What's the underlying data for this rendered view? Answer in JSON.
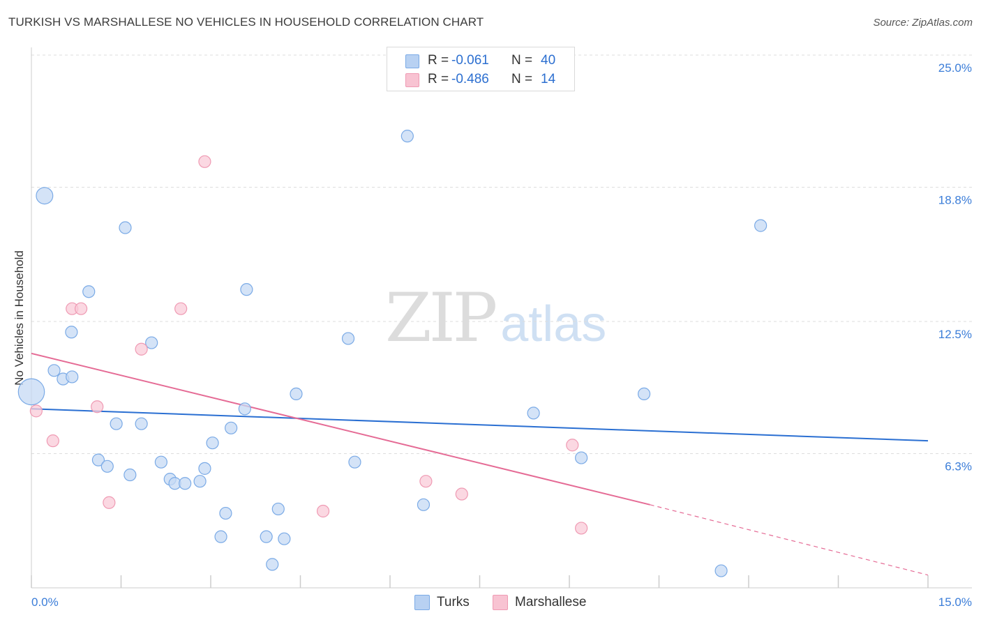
{
  "title": "TURKISH VS MARSHALLESE NO VEHICLES IN HOUSEHOLD CORRELATION CHART",
  "source": "Source: ZipAtlas.com",
  "watermark": {
    "zip": "ZIP",
    "atlas": "atlas"
  },
  "legend": {
    "rows": [
      {
        "r_label": "R =",
        "r_value": "-0.061",
        "n_label": "N =",
        "n_value": "40",
        "color": "#b8d1f2"
      },
      {
        "r_label": "R =",
        "r_value": "-0.486",
        "n_label": "N =",
        "n_value": "14",
        "color": "#f8c3d2"
      }
    ]
  },
  "bottom_legend": {
    "turks": "Turks",
    "marshallese": "Marshallese"
  },
  "chart_data": {
    "type": "scatter",
    "title": "TURKISH VS MARSHALLESE NO VEHICLES IN HOUSEHOLD CORRELATION CHART",
    "ylabel": "No Vehicles in Household",
    "xlim": [
      0,
      15
    ],
    "ylim": [
      0,
      25
    ],
    "x_tick_labels": [
      "0.0%",
      "15.0%"
    ],
    "y_ticks": [
      6.3,
      12.5,
      18.8,
      25.0
    ],
    "y_tick_labels": [
      "6.3%",
      "12.5%",
      "18.8%",
      "25.0%"
    ],
    "grid": true,
    "legend_position": "top-center",
    "series": [
      {
        "name": "Turks",
        "color": "#7aaae6",
        "fill": "#c5daf4",
        "trend": {
          "x": [
            0,
            15
          ],
          "y": [
            8.4,
            6.9
          ]
        },
        "points": [
          {
            "x": 0.22,
            "y": 18.4,
            "s": 1.4
          },
          {
            "x": 0.0,
            "y": 9.2,
            "s": 2.2
          },
          {
            "x": 0.38,
            "y": 10.2,
            "s": 1
          },
          {
            "x": 0.53,
            "y": 9.8,
            "s": 1
          },
          {
            "x": 0.68,
            "y": 9.9,
            "s": 1
          },
          {
            "x": 0.67,
            "y": 12.0,
            "s": 1
          },
          {
            "x": 0.96,
            "y": 13.9,
            "s": 1
          },
          {
            "x": 1.57,
            "y": 16.9,
            "s": 1
          },
          {
            "x": 1.42,
            "y": 7.7,
            "s": 1
          },
          {
            "x": 1.84,
            "y": 7.7,
            "s": 1
          },
          {
            "x": 1.12,
            "y": 6.0,
            "s": 1
          },
          {
            "x": 1.27,
            "y": 5.7,
            "s": 1
          },
          {
            "x": 1.65,
            "y": 5.3,
            "s": 1
          },
          {
            "x": 2.01,
            "y": 11.5,
            "s": 1
          },
          {
            "x": 2.17,
            "y": 5.9,
            "s": 1
          },
          {
            "x": 2.32,
            "y": 5.1,
            "s": 1
          },
          {
            "x": 2.4,
            "y": 4.9,
            "s": 1
          },
          {
            "x": 2.57,
            "y": 4.9,
            "s": 1
          },
          {
            "x": 2.82,
            "y": 5.0,
            "s": 1
          },
          {
            "x": 2.9,
            "y": 5.6,
            "s": 1
          },
          {
            "x": 3.03,
            "y": 6.8,
            "s": 1
          },
          {
            "x": 3.34,
            "y": 7.5,
            "s": 1
          },
          {
            "x": 3.6,
            "y": 14.0,
            "s": 1
          },
          {
            "x": 3.57,
            "y": 8.4,
            "s": 1
          },
          {
            "x": 3.25,
            "y": 3.5,
            "s": 1
          },
          {
            "x": 3.17,
            "y": 2.4,
            "s": 1
          },
          {
            "x": 3.93,
            "y": 2.4,
            "s": 1
          },
          {
            "x": 4.13,
            "y": 3.7,
            "s": 1
          },
          {
            "x": 4.23,
            "y": 2.3,
            "s": 1
          },
          {
            "x": 4.03,
            "y": 1.1,
            "s": 1
          },
          {
            "x": 4.43,
            "y": 9.1,
            "s": 1
          },
          {
            "x": 5.3,
            "y": 11.7,
            "s": 1
          },
          {
            "x": 5.41,
            "y": 5.9,
            "s": 1
          },
          {
            "x": 6.29,
            "y": 21.2,
            "s": 1
          },
          {
            "x": 6.56,
            "y": 3.9,
            "s": 1
          },
          {
            "x": 8.4,
            "y": 8.2,
            "s": 1
          },
          {
            "x": 9.2,
            "y": 6.1,
            "s": 1
          },
          {
            "x": 10.25,
            "y": 9.1,
            "s": 1
          },
          {
            "x": 11.54,
            "y": 0.8,
            "s": 1
          },
          {
            "x": 12.2,
            "y": 17.0,
            "s": 1
          }
        ]
      },
      {
        "name": "Marshallese",
        "color": "#ef9ab3",
        "fill": "#f9cbd8",
        "trend": {
          "x": [
            0,
            10.35
          ],
          "y": [
            11.0,
            3.9
          ]
        },
        "trend_dashed": {
          "x": [
            10.35,
            15
          ],
          "y": [
            3.9,
            0.6
          ]
        },
        "points": [
          {
            "x": 0.08,
            "y": 8.3,
            "s": 1
          },
          {
            "x": 0.36,
            "y": 6.9,
            "s": 1
          },
          {
            "x": 0.68,
            "y": 13.1,
            "s": 1
          },
          {
            "x": 0.83,
            "y": 13.1,
            "s": 1
          },
          {
            "x": 1.1,
            "y": 8.5,
            "s": 1
          },
          {
            "x": 1.3,
            "y": 4.0,
            "s": 1
          },
          {
            "x": 1.84,
            "y": 11.2,
            "s": 1
          },
          {
            "x": 2.5,
            "y": 13.1,
            "s": 1
          },
          {
            "x": 2.9,
            "y": 20.0,
            "s": 1
          },
          {
            "x": 4.88,
            "y": 3.6,
            "s": 1
          },
          {
            "x": 6.6,
            "y": 5.0,
            "s": 1
          },
          {
            "x": 7.2,
            "y": 4.4,
            "s": 1
          },
          {
            "x": 9.05,
            "y": 6.7,
            "s": 1
          },
          {
            "x": 9.2,
            "y": 2.8,
            "s": 1
          }
        ]
      }
    ]
  }
}
